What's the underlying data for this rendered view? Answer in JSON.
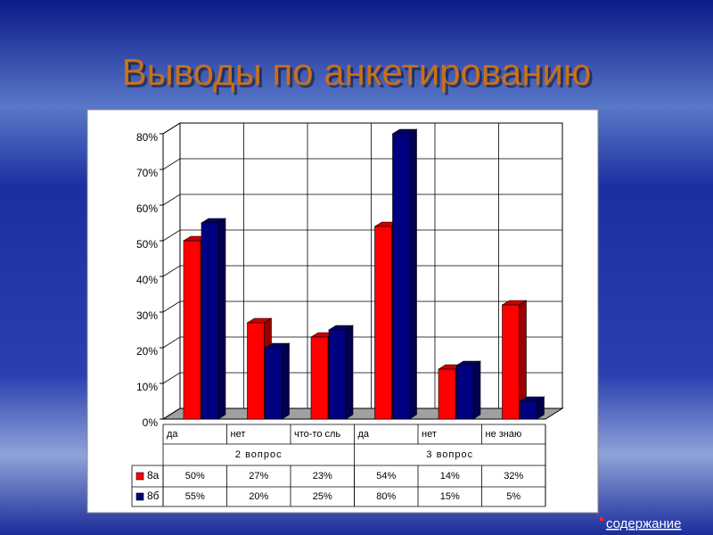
{
  "title": "Выводы по анкетированию",
  "footer_link": "содержание",
  "chart_data": {
    "type": "bar3d",
    "categories": [
      "да",
      "нет",
      "что-то сль",
      "да",
      "нет",
      "не знаю"
    ],
    "groups": [
      {
        "label": "2 вопрос",
        "span": 3
      },
      {
        "label": "3 вопрос",
        "span": 3
      }
    ],
    "series": [
      {
        "name": "8а",
        "color": "#ff0000",
        "values": [
          50,
          27,
          23,
          54,
          14,
          32
        ],
        "value_labels": [
          "50%",
          "27%",
          "23%",
          "54%",
          "14%",
          "32%"
        ]
      },
      {
        "name": "8б",
        "color": "#000080",
        "values": [
          55,
          20,
          25,
          80,
          15,
          5
        ],
        "value_labels": [
          "55%",
          "20%",
          "25%",
          "80%",
          "15%",
          "5%"
        ]
      }
    ],
    "ylim": [
      0,
      80
    ],
    "yticks": [
      {
        "value": 0,
        "label": "0%"
      },
      {
        "value": 10,
        "label": "10%"
      },
      {
        "value": 20,
        "label": "20%"
      },
      {
        "value": 30,
        "label": "30%"
      },
      {
        "value": 40,
        "label": "40%"
      },
      {
        "value": 50,
        "label": "50%"
      },
      {
        "value": 60,
        "label": "60%"
      },
      {
        "value": 70,
        "label": "70%"
      },
      {
        "value": 80,
        "label": "80%"
      }
    ],
    "grid": true
  }
}
